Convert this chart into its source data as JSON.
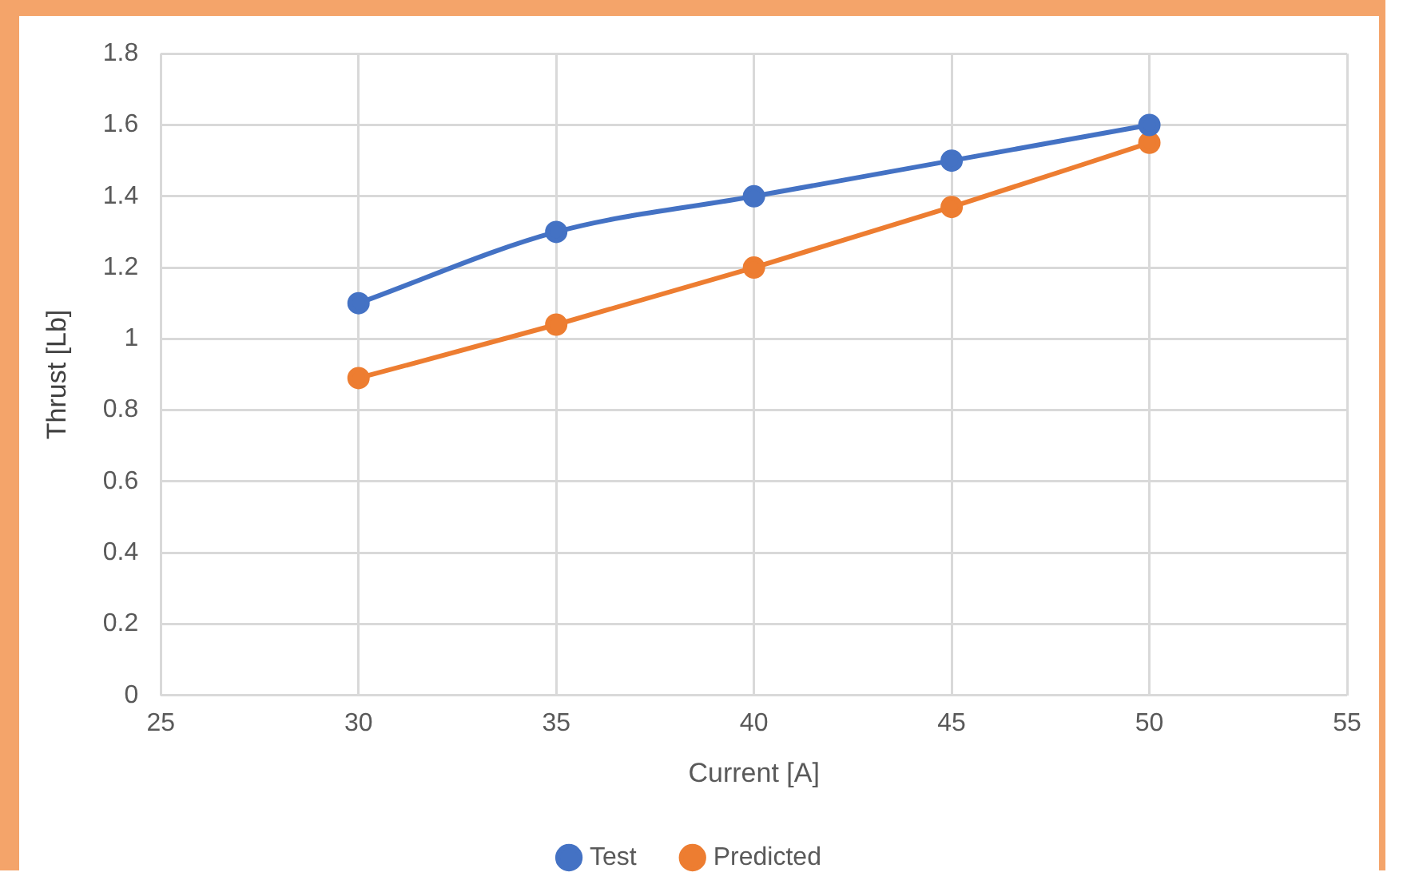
{
  "chart_data": {
    "type": "line",
    "xlabel": "Current [A]",
    "ylabel": "Thrust [Lb]",
    "x": [
      30,
      35,
      40,
      45,
      50
    ],
    "series": [
      {
        "name": "Test",
        "color": "#4472c4",
        "values": [
          1.1,
          1.3,
          1.4,
          1.5,
          1.6
        ]
      },
      {
        "name": "Predicted",
        "color": "#ed7d31",
        "values": [
          0.89,
          1.04,
          1.2,
          1.37,
          1.55
        ]
      }
    ],
    "xlim": [
      25,
      55
    ],
    "xticks": [
      25,
      30,
      35,
      40,
      45,
      50,
      55
    ],
    "ylim": [
      0,
      1.8
    ],
    "yticks": [
      0,
      0.2,
      0.4,
      0.6,
      0.8,
      1,
      1.2,
      1.4,
      1.6,
      1.8
    ],
    "grid": true,
    "legend": "bottom",
    "marker": "circle",
    "line_style": "solid"
  }
}
